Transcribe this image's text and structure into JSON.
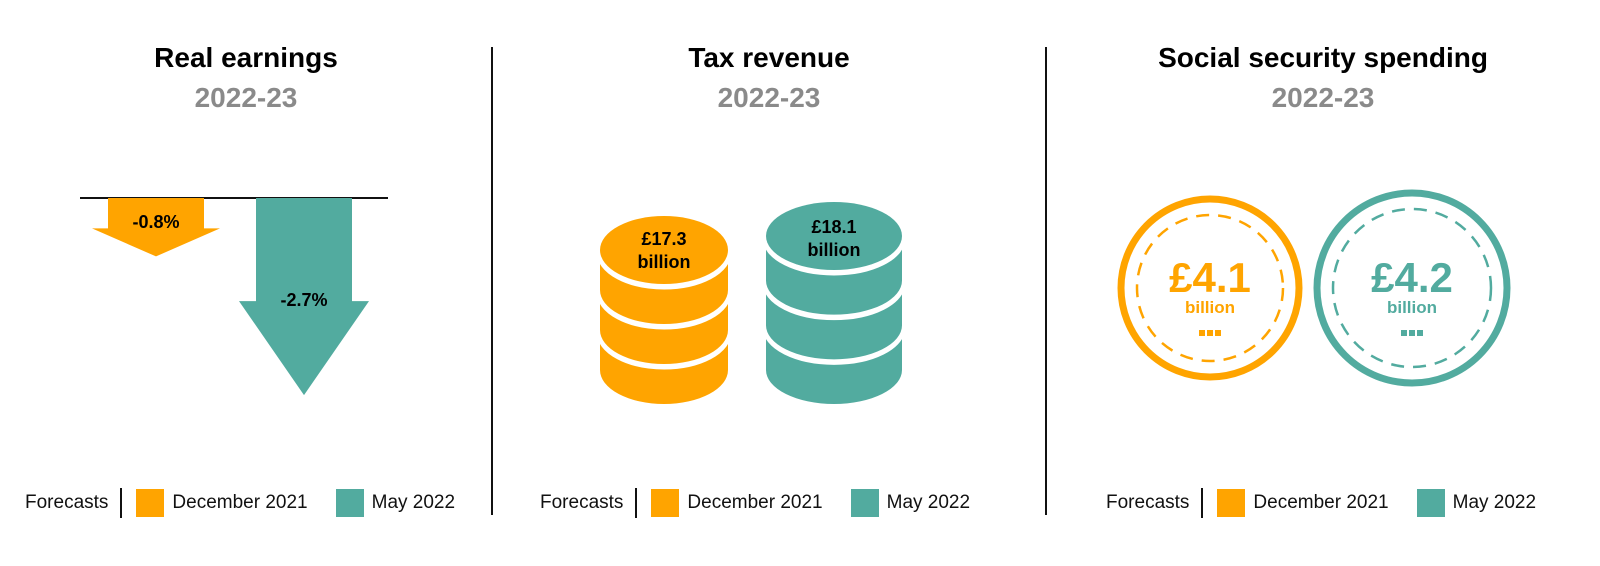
{
  "colors": {
    "orange": "#FFA400",
    "teal": "#52AB9F",
    "divider": "#111111",
    "subtitle": "#8A8A8A"
  },
  "legend": {
    "label": "Forecasts",
    "dec": "December 2021",
    "may": "May 2022"
  },
  "chart_data": [
    {
      "type": "bar",
      "title": "Real earnings",
      "subtitle": "2022-23",
      "unit": "%",
      "categories": [
        "December 2021",
        "May 2022"
      ],
      "values": [
        -0.8,
        -2.7
      ],
      "labels": [
        "-0.8%",
        "-2.7%"
      ]
    },
    {
      "type": "bar",
      "title": "Tax revenue",
      "subtitle": "2022-23",
      "unit": "£ billion",
      "categories": [
        "December 2021",
        "May 2022"
      ],
      "values": [
        17.3,
        18.1
      ],
      "labels": [
        {
          "amount": "£17.3",
          "unit": "billion"
        },
        {
          "amount": "£18.1",
          "unit": "billion"
        }
      ]
    },
    {
      "type": "bar",
      "title": "Social security spending",
      "subtitle": "2022-23",
      "unit": "£ billion",
      "categories": [
        "December 2021",
        "May 2022"
      ],
      "values": [
        4.1,
        4.2
      ],
      "labels": [
        {
          "amount": "£4.1",
          "unit": "billion"
        },
        {
          "amount": "£4.2",
          "unit": "billion"
        }
      ]
    }
  ]
}
